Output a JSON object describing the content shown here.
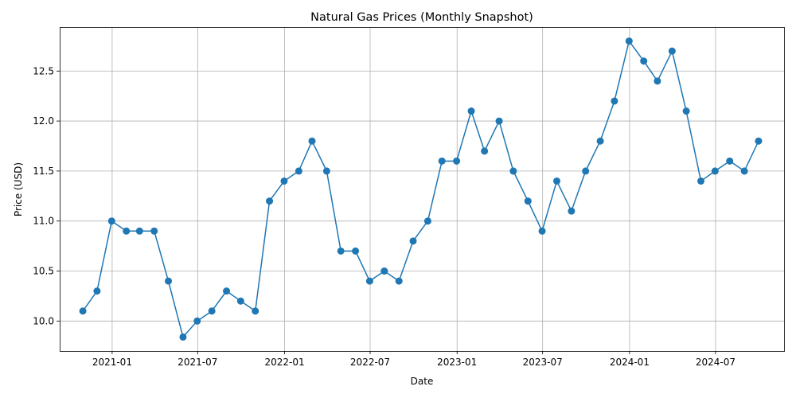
{
  "chart_data": {
    "type": "line",
    "title": "Natural Gas Prices (Monthly Snapshot)",
    "xlabel": "Date",
    "ylabel": "Price (USD)",
    "grid": true,
    "color": "#1f77b4",
    "xlim": [
      "2020-09-12",
      "2024-11-23"
    ],
    "ylim": [
      9.7,
      12.94
    ],
    "x_ticks": [
      {
        "date": "2021-01-01",
        "label": "2021-01"
      },
      {
        "date": "2021-07-01",
        "label": "2021-07"
      },
      {
        "date": "2022-01-01",
        "label": "2022-01"
      },
      {
        "date": "2022-07-01",
        "label": "2022-07"
      },
      {
        "date": "2023-01-01",
        "label": "2023-01"
      },
      {
        "date": "2023-07-01",
        "label": "2023-07"
      },
      {
        "date": "2024-01-01",
        "label": "2024-01"
      },
      {
        "date": "2024-07-01",
        "label": "2024-07"
      }
    ],
    "y_ticks": [
      {
        "value": 10.0,
        "label": "10.0"
      },
      {
        "value": 10.5,
        "label": "10.5"
      },
      {
        "value": 11.0,
        "label": "11.0"
      },
      {
        "value": 11.5,
        "label": "11.5"
      },
      {
        "value": 12.0,
        "label": "12.0"
      },
      {
        "value": 12.5,
        "label": "12.5"
      }
    ],
    "series": [
      {
        "x": [
          "2020-10-31",
          "2020-11-30",
          "2020-12-31",
          "2021-01-31",
          "2021-02-28",
          "2021-03-31",
          "2021-04-30",
          "2021-05-31",
          "2021-06-30",
          "2021-07-31",
          "2021-08-31",
          "2021-09-30",
          "2021-10-31",
          "2021-11-30",
          "2021-12-31",
          "2022-01-31",
          "2022-02-28",
          "2022-03-31",
          "2022-04-30",
          "2022-05-31",
          "2022-06-30",
          "2022-07-31",
          "2022-08-31",
          "2022-09-30",
          "2022-10-31",
          "2022-11-30",
          "2022-12-31",
          "2023-01-31",
          "2023-02-28",
          "2023-03-31",
          "2023-04-30",
          "2023-05-31",
          "2023-06-30",
          "2023-07-31",
          "2023-08-31",
          "2023-09-30",
          "2023-10-31",
          "2023-11-30",
          "2023-12-31",
          "2024-01-31",
          "2024-02-29",
          "2024-03-31",
          "2024-04-30",
          "2024-05-31",
          "2024-06-30",
          "2024-07-31",
          "2024-08-31",
          "2024-09-30"
        ],
        "values": [
          10.1,
          10.3,
          11.0,
          10.9,
          10.9,
          10.9,
          10.4,
          9.84,
          10.0,
          10.1,
          10.3,
          10.2,
          10.1,
          11.2,
          11.4,
          11.5,
          11.8,
          11.5,
          10.7,
          10.7,
          10.4,
          10.5,
          10.4,
          10.8,
          11.0,
          11.6,
          11.6,
          12.1,
          11.7,
          12.0,
          11.5,
          11.2,
          10.9,
          11.4,
          11.1,
          11.5,
          11.8,
          12.2,
          12.8,
          12.6,
          12.4,
          12.7,
          12.1,
          11.4,
          11.5,
          11.6,
          11.5,
          11.8
        ]
      }
    ]
  }
}
